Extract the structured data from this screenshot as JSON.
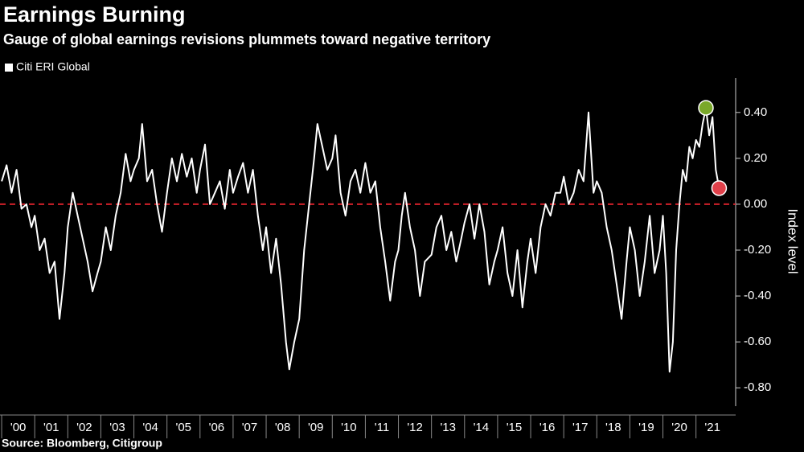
{
  "chart_data": {
    "type": "line",
    "title": "Earnings Burning",
    "subtitle": "Gauge of global earnings revisions plummets toward negative territory",
    "y_label": "Index level",
    "source": "Source: Bloomberg, Citigroup",
    "series": [
      {
        "name": "Citi ERI Global",
        "color": "#ffffff",
        "x": [
          2000.0,
          2000.15,
          2000.3,
          2000.45,
          2000.6,
          2000.75,
          2000.9,
          2001.0,
          2001.15,
          2001.3,
          2001.45,
          2001.6,
          2001.75,
          2001.9,
          2002.0,
          2002.15,
          2002.3,
          2002.45,
          2002.6,
          2002.75,
          2002.9,
          2003.0,
          2003.15,
          2003.3,
          2003.45,
          2003.6,
          2003.75,
          2003.9,
          2004.0,
          2004.15,
          2004.25,
          2004.4,
          2004.55,
          2004.7,
          2004.85,
          2005.0,
          2005.15,
          2005.3,
          2005.45,
          2005.6,
          2005.75,
          2005.9,
          2006.0,
          2006.15,
          2006.3,
          2006.45,
          2006.6,
          2006.75,
          2006.9,
          2007.0,
          2007.15,
          2007.3,
          2007.45,
          2007.6,
          2007.75,
          2007.9,
          2008.0,
          2008.15,
          2008.3,
          2008.45,
          2008.6,
          2008.7,
          2008.85,
          2009.0,
          2009.15,
          2009.3,
          2009.45,
          2009.55,
          2009.7,
          2009.85,
          2010.0,
          2010.1,
          2010.25,
          2010.4,
          2010.55,
          2010.7,
          2010.85,
          2011.0,
          2011.15,
          2011.3,
          2011.45,
          2011.6,
          2011.75,
          2011.9,
          2012.0,
          2012.1,
          2012.2,
          2012.35,
          2012.5,
          2012.65,
          2012.8,
          2013.0,
          2013.15,
          2013.3,
          2013.45,
          2013.6,
          2013.75,
          2013.9,
          2014.0,
          2014.15,
          2014.3,
          2014.45,
          2014.6,
          2014.75,
          2014.9,
          2015.0,
          2015.15,
          2015.3,
          2015.45,
          2015.6,
          2015.75,
          2015.9,
          2016.0,
          2016.15,
          2016.3,
          2016.45,
          2016.6,
          2016.75,
          2016.9,
          2017.0,
          2017.15,
          2017.3,
          2017.45,
          2017.6,
          2017.75,
          2017.9,
          2018.0,
          2018.15,
          2018.3,
          2018.45,
          2018.6,
          2018.75,
          2018.9,
          2019.0,
          2019.15,
          2019.3,
          2019.45,
          2019.6,
          2019.75,
          2019.9,
          2020.0,
          2020.1,
          2020.2,
          2020.3,
          2020.4,
          2020.5,
          2020.6,
          2020.7,
          2020.8,
          2020.9,
          2021.0,
          2021.1,
          2021.2,
          2021.3,
          2021.4,
          2021.5,
          2021.6,
          2021.7
        ],
        "values": [
          0.1,
          0.17,
          0.05,
          0.15,
          -0.02,
          0.0,
          -0.1,
          -0.05,
          -0.2,
          -0.15,
          -0.3,
          -0.25,
          -0.5,
          -0.3,
          -0.1,
          0.05,
          -0.05,
          -0.15,
          -0.25,
          -0.38,
          -0.3,
          -0.25,
          -0.1,
          -0.2,
          -0.05,
          0.05,
          0.22,
          0.1,
          0.15,
          0.2,
          0.35,
          0.1,
          0.15,
          0.0,
          -0.12,
          0.05,
          0.2,
          0.1,
          0.22,
          0.12,
          0.2,
          0.05,
          0.15,
          0.26,
          0.0,
          0.05,
          0.1,
          -0.02,
          0.15,
          0.05,
          0.12,
          0.18,
          0.05,
          0.15,
          -0.05,
          -0.2,
          -0.1,
          -0.3,
          -0.15,
          -0.35,
          -0.6,
          -0.72,
          -0.6,
          -0.5,
          -0.2,
          0.0,
          0.2,
          0.35,
          0.25,
          0.15,
          0.2,
          0.3,
          0.05,
          -0.05,
          0.1,
          0.15,
          0.05,
          0.18,
          0.05,
          0.1,
          -0.1,
          -0.25,
          -0.42,
          -0.25,
          -0.2,
          -0.05,
          0.05,
          -0.1,
          -0.2,
          -0.4,
          -0.25,
          -0.22,
          -0.1,
          -0.05,
          -0.2,
          -0.12,
          -0.25,
          -0.15,
          -0.08,
          0.0,
          -0.15,
          0.0,
          -0.12,
          -0.35,
          -0.25,
          -0.2,
          -0.1,
          -0.3,
          -0.4,
          -0.2,
          -0.45,
          -0.25,
          -0.15,
          -0.3,
          -0.1,
          0.0,
          -0.05,
          0.05,
          0.05,
          0.12,
          0.0,
          0.05,
          0.15,
          0.1,
          0.4,
          0.05,
          0.1,
          0.05,
          -0.1,
          -0.2,
          -0.35,
          -0.5,
          -0.25,
          -0.1,
          -0.2,
          -0.4,
          -0.25,
          -0.05,
          -0.3,
          -0.2,
          -0.05,
          -0.3,
          -0.73,
          -0.6,
          -0.2,
          0.0,
          0.15,
          0.1,
          0.25,
          0.2,
          0.28,
          0.25,
          0.35,
          0.42,
          0.3,
          0.38,
          0.15,
          0.07
        ]
      }
    ],
    "xlim": [
      1999.95,
      2022.2
    ],
    "ylim": [
      -0.88,
      0.55
    ],
    "xticks": [
      {
        "value": 2000.5,
        "label": "'00"
      },
      {
        "value": 2001.5,
        "label": "'01"
      },
      {
        "value": 2002.5,
        "label": "'02"
      },
      {
        "value": 2003.5,
        "label": "'03"
      },
      {
        "value": 2004.5,
        "label": "'04"
      },
      {
        "value": 2005.5,
        "label": "'05"
      },
      {
        "value": 2006.5,
        "label": "'06"
      },
      {
        "value": 2007.5,
        "label": "'07"
      },
      {
        "value": 2008.5,
        "label": "'08"
      },
      {
        "value": 2009.5,
        "label": "'09"
      },
      {
        "value": 2010.5,
        "label": "'10"
      },
      {
        "value": 2011.5,
        "label": "'11"
      },
      {
        "value": 2012.5,
        "label": "'12"
      },
      {
        "value": 2013.5,
        "label": "'13"
      },
      {
        "value": 2014.5,
        "label": "'14"
      },
      {
        "value": 2015.5,
        "label": "'15"
      },
      {
        "value": 2016.5,
        "label": "'16"
      },
      {
        "value": 2017.5,
        "label": "'17"
      },
      {
        "value": 2018.5,
        "label": "'18"
      },
      {
        "value": 2019.5,
        "label": "'19"
      },
      {
        "value": 2020.5,
        "label": "'20"
      },
      {
        "value": 2021.5,
        "label": "'21"
      }
    ],
    "yticks": [
      {
        "value": 0.4,
        "label": "0.40"
      },
      {
        "value": 0.2,
        "label": "0.20"
      },
      {
        "value": 0,
        "label": "0.00"
      },
      {
        "value": -0.2,
        "label": "-0.20"
      },
      {
        "value": -0.4,
        "label": "-0.40"
      },
      {
        "value": -0.6,
        "label": "-0.60"
      },
      {
        "value": -0.8,
        "label": "-0.80"
      }
    ],
    "zero_line_color": "#d0202a",
    "peak_marker_color": "#7aa82a",
    "last_marker_color": "#e0404a",
    "legend": "top-left"
  }
}
